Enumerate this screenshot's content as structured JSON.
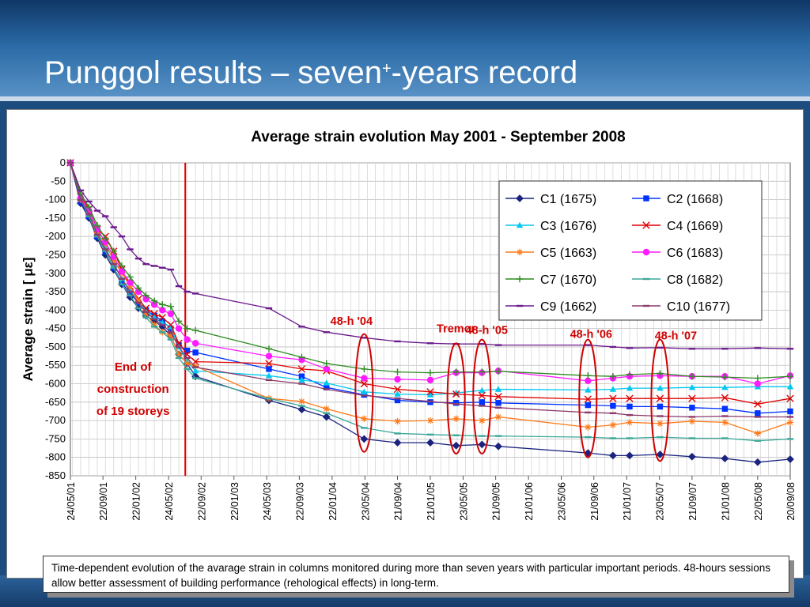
{
  "slide": {
    "title_main": "Punggol results – seven",
    "title_sup": "+",
    "title_tail": "-years record",
    "caption": "Time-dependent evolution of the avarage strain in columns monitored during more than seven years with particular important periods. 48-hours sessions allow better assessment of building performance (rehological effects) in long-term."
  },
  "chart_data": {
    "type": "line",
    "title": "Average strain evolution May 2001 - September 2008",
    "ylabel": "Average strain [ με]",
    "xlabel": "",
    "ylim": [
      -850,
      0
    ],
    "yticks": [
      0,
      -50,
      -100,
      -150,
      -200,
      -250,
      -300,
      -350,
      -400,
      -450,
      -500,
      -550,
      -600,
      -650,
      -700,
      -750,
      -800,
      -850
    ],
    "xlim": [
      "2001-05-24",
      "2008-09-20"
    ],
    "xticks": [
      "24/05/01",
      "22/09/01",
      "22/01/02",
      "24/05/02",
      "22/09/02",
      "22/01/03",
      "24/05/03",
      "22/09/03",
      "22/01/04",
      "23/05/04",
      "21/09/04",
      "21/01/05",
      "23/05/05",
      "21/09/05",
      "21/01/06",
      "23/05/06",
      "21/09/06",
      "21/01/07",
      "23/05/07",
      "21/09/07",
      "21/01/08",
      "22/05/08",
      "20/09/08"
    ],
    "grid": true,
    "legend": "top-right",
    "annotations": [
      {
        "text": "End of construction of 19 storeys",
        "x": "2002-09-01",
        "color": "#d00000"
      },
      {
        "text": "48-h '04",
        "x": "2004-05-20",
        "color": "#d00000"
      },
      {
        "text": "Tremor",
        "x": "2005-04-27",
        "color": "#d00000"
      },
      {
        "text": "48-h '05",
        "x": "2005-08-01",
        "color": "#d00000"
      },
      {
        "text": "48-h '06",
        "x": "2006-08-30",
        "color": "#d00000"
      },
      {
        "text": "48-h '07",
        "x": "2007-05-25",
        "color": "#d00000"
      }
    ],
    "vline": {
      "x": "2002-07-25",
      "color": "#e00000"
    },
    "x": [
      "2001-05-24",
      "2001-07-01",
      "2001-08-01",
      "2001-09-01",
      "2001-10-01",
      "2001-11-01",
      "2001-12-01",
      "2002-01-01",
      "2002-02-01",
      "2002-03-01",
      "2002-04-01",
      "2002-05-01",
      "2002-06-01",
      "2002-07-01",
      "2002-08-01",
      "2002-09-01",
      "2003-06-01",
      "2003-10-01",
      "2004-01-01",
      "2004-05-20",
      "2004-09-21",
      "2005-01-21",
      "2005-04-27",
      "2005-08-01",
      "2005-10-01",
      "2006-08-30",
      "2006-12-01",
      "2007-02-01",
      "2007-05-25",
      "2007-09-21",
      "2008-01-21",
      "2008-05-22",
      "2008-09-20"
    ],
    "series": [
      {
        "name": "C1 (1675)",
        "color": "#1a237e",
        "marker": "diamond",
        "values": [
          0,
          -110,
          -150,
          -205,
          -250,
          -290,
          -330,
          -365,
          -395,
          -415,
          -430,
          -445,
          -470,
          -520,
          -545,
          -580,
          -645,
          -670,
          -690,
          -750,
          -760,
          -760,
          -768,
          -765,
          -770,
          -788,
          -795,
          -795,
          -792,
          -798,
          -803,
          -813,
          -805
        ]
      },
      {
        "name": "C2 (1668)",
        "color": "#0033ff",
        "marker": "square",
        "values": [
          0,
          -105,
          -145,
          -200,
          -240,
          -285,
          -325,
          -355,
          -380,
          -400,
          -415,
          -430,
          -450,
          -495,
          -510,
          -515,
          -560,
          -580,
          -610,
          -630,
          -645,
          -650,
          -652,
          -650,
          -652,
          -658,
          -660,
          -662,
          -662,
          -665,
          -668,
          -680,
          -675
        ]
      },
      {
        "name": "C3 (1676)",
        "color": "#00c8f0",
        "marker": "triangle",
        "values": [
          0,
          -95,
          -135,
          -190,
          -230,
          -275,
          -315,
          -345,
          -375,
          -400,
          -420,
          -435,
          -445,
          -500,
          -540,
          -565,
          -578,
          -590,
          -598,
          -622,
          -628,
          -630,
          -625,
          -618,
          -615,
          -617,
          -615,
          -612,
          -612,
          -610,
          -610,
          -608,
          -608
        ]
      },
      {
        "name": "C4 (1669)",
        "color": "#e00000",
        "marker": "x",
        "values": [
          0,
          -90,
          -125,
          -180,
          -200,
          -240,
          -290,
          -335,
          -370,
          -395,
          -410,
          -420,
          -440,
          -490,
          -520,
          -540,
          -545,
          -560,
          -565,
          -600,
          -615,
          -622,
          -628,
          -632,
          -635,
          -642,
          -640,
          -640,
          -640,
          -640,
          -638,
          -655,
          -640
        ]
      },
      {
        "name": "C5 (1663)",
        "color": "#ff7a1a",
        "marker": "asterisk",
        "values": [
          0,
          -100,
          -140,
          -190,
          -220,
          -265,
          -300,
          -335,
          -375,
          -410,
          -440,
          -460,
          -470,
          -520,
          -545,
          -552,
          -640,
          -648,
          -668,
          -695,
          -702,
          -700,
          -695,
          -700,
          -690,
          -718,
          -712,
          -705,
          -708,
          -702,
          -705,
          -735,
          -705
        ]
      },
      {
        "name": "C6 (1683)",
        "color": "#ff1aff",
        "marker": "circle",
        "values": [
          0,
          -95,
          -130,
          -180,
          -215,
          -255,
          -295,
          -325,
          -350,
          -370,
          -385,
          -400,
          -410,
          -450,
          -480,
          -490,
          -525,
          -535,
          -560,
          -585,
          -588,
          -590,
          -570,
          -570,
          -565,
          -592,
          -585,
          -580,
          -578,
          -580,
          -580,
          -600,
          -578
        ]
      },
      {
        "name": "C7 (1670)",
        "color": "#2e8b22",
        "marker": "plus",
        "values": [
          0,
          -85,
          -120,
          -170,
          -205,
          -240,
          -280,
          -310,
          -340,
          -360,
          -375,
          -385,
          -390,
          -430,
          -450,
          -455,
          -505,
          -528,
          -545,
          -560,
          -568,
          -570,
          -568,
          -568,
          -566,
          -578,
          -580,
          -575,
          -572,
          -580,
          -582,
          -585,
          -580
        ]
      },
      {
        "name": "C8 (1682)",
        "color": "#3aa89a",
        "marker": "dash",
        "values": [
          0,
          -100,
          -145,
          -200,
          -240,
          -285,
          -330,
          -360,
          -395,
          -420,
          -445,
          -460,
          -480,
          -530,
          -560,
          -585,
          -640,
          -660,
          -680,
          -720,
          -735,
          -738,
          -740,
          -742,
          -742,
          -745,
          -748,
          -748,
          -745,
          -748,
          -748,
          -755,
          -750
        ]
      },
      {
        "name": "C9 (1662)",
        "color": "#6b1a8c",
        "marker": "dash",
        "values": [
          0,
          -75,
          -105,
          -130,
          -145,
          -175,
          -200,
          -235,
          -260,
          -275,
          -280,
          -285,
          -290,
          -335,
          -350,
          -355,
          -395,
          -445,
          -460,
          -475,
          -485,
          -490,
          -492,
          -492,
          -495,
          -495,
          -500,
          -503,
          -502,
          -505,
          -505,
          -503,
          -505
        ]
      },
      {
        "name": "C10 (1677)",
        "color": "#8b3a6b",
        "marker": "dash",
        "values": [
          0,
          -100,
          -140,
          -195,
          -235,
          -275,
          -315,
          -350,
          -380,
          -405,
          -425,
          -440,
          -460,
          -500,
          -530,
          -555,
          -590,
          -600,
          -615,
          -632,
          -640,
          -648,
          -655,
          -660,
          -665,
          -678,
          -680,
          -685,
          -688,
          -690,
          -688,
          -690,
          -690
        ]
      }
    ]
  }
}
